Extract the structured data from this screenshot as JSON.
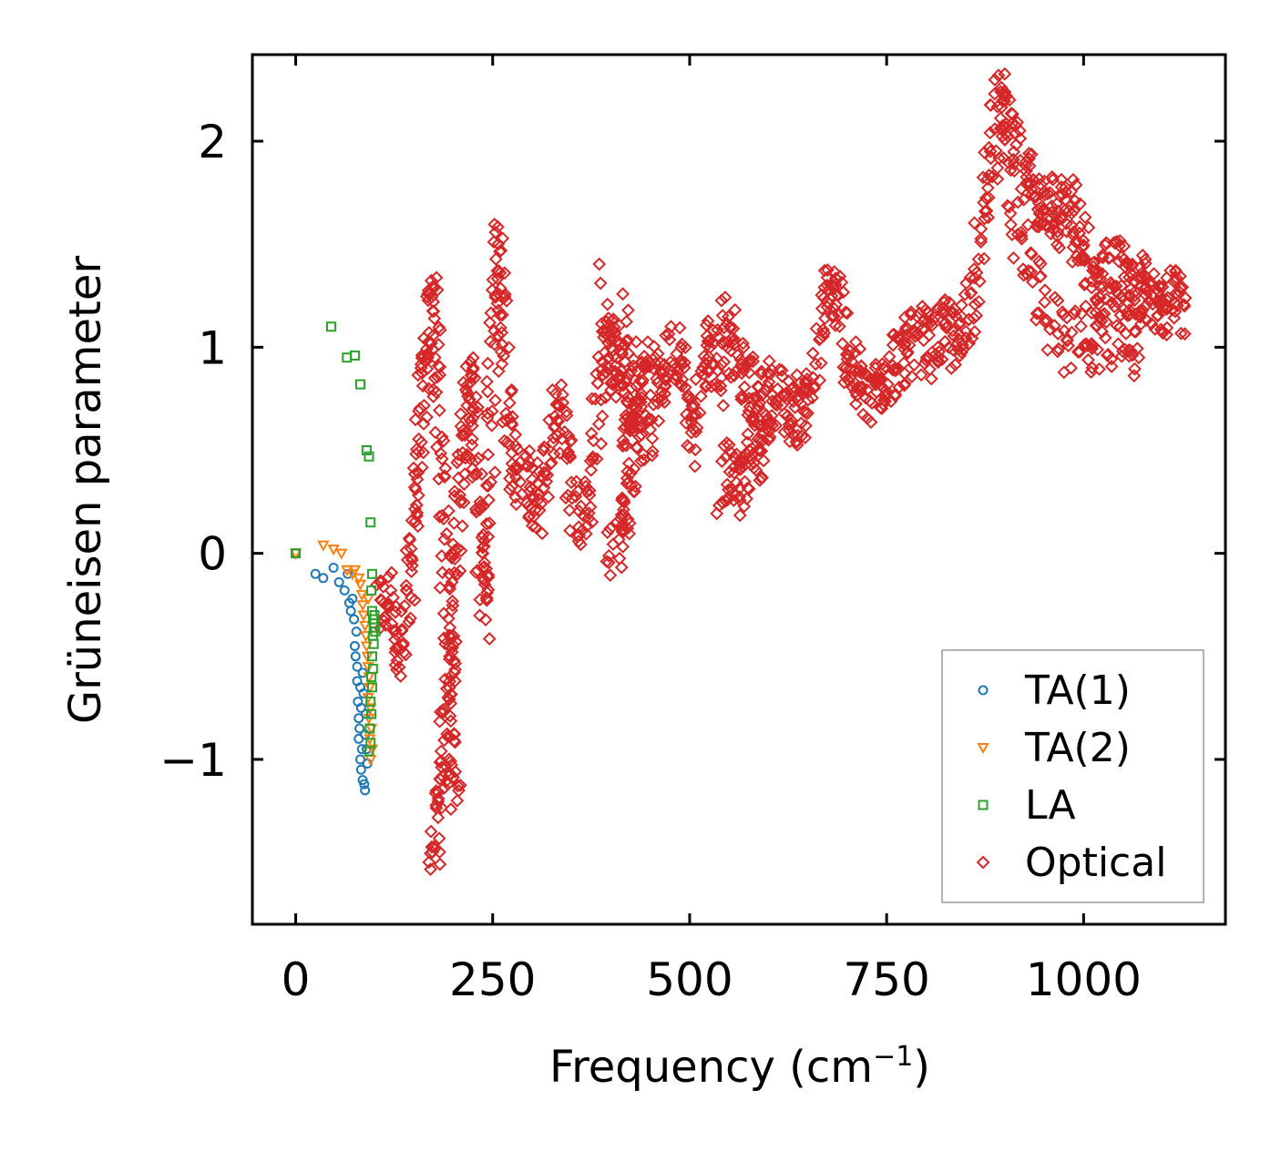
{
  "chart_data": {
    "type": "scatter",
    "title": "",
    "xlabel": "Frequency (cm",
    "xlabel_sup": "−1",
    "xlabel_end": ")",
    "ylabel": "Grüneisen parameter",
    "xlim": [
      -55,
      1180
    ],
    "ylim": [
      -1.8,
      2.42
    ],
    "xticks": [
      0,
      250,
      500,
      750,
      1000
    ],
    "xtick_labels": [
      "0",
      "250",
      "500",
      "750",
      "1000"
    ],
    "yticks": [
      -1,
      0,
      1,
      2
    ],
    "ytick_labels": [
      "−1",
      "0",
      "1",
      "2"
    ],
    "grid": false,
    "legend_position": "lower-right",
    "series": [
      {
        "name": "TA(1)",
        "marker": "circle",
        "color": "#1f77b4",
        "points": [
          [
            0,
            0
          ],
          [
            25,
            -0.1
          ],
          [
            35,
            -0.12
          ],
          [
            48,
            -0.07
          ],
          [
            55,
            -0.14
          ],
          [
            62,
            -0.18
          ],
          [
            66,
            -0.1
          ],
          [
            68,
            -0.24
          ],
          [
            70,
            -0.28
          ],
          [
            72,
            -0.22
          ],
          [
            74,
            -0.32
          ],
          [
            75,
            -0.45
          ],
          [
            76,
            -0.5
          ],
          [
            77,
            -0.38
          ],
          [
            78,
            -0.55
          ],
          [
            78,
            -0.62
          ],
          [
            79,
            -0.72
          ],
          [
            80,
            -0.8
          ],
          [
            80,
            -0.9
          ],
          [
            81,
            -0.85
          ],
          [
            82,
            -0.65
          ],
          [
            82,
            -1.0
          ],
          [
            83,
            -1.05
          ],
          [
            83,
            -0.75
          ],
          [
            84,
            -0.95
          ],
          [
            85,
            -1.1
          ],
          [
            85,
            -0.58
          ],
          [
            86,
            -0.68
          ],
          [
            87,
            -1.12
          ],
          [
            88,
            -1.15
          ],
          [
            88,
            -0.88
          ],
          [
            89,
            -0.78
          ],
          [
            90,
            -0.95
          ],
          [
            91,
            -1.02
          ]
        ]
      },
      {
        "name": "TA(2)",
        "marker": "triangle-down",
        "color": "#ff7f0e",
        "points": [
          [
            0,
            0
          ],
          [
            35,
            0.04
          ],
          [
            48,
            0.02
          ],
          [
            58,
            0.0
          ],
          [
            65,
            -0.08
          ],
          [
            72,
            -0.1
          ],
          [
            75,
            -0.08
          ],
          [
            80,
            -0.12
          ],
          [
            82,
            -0.15
          ],
          [
            84,
            -0.2
          ],
          [
            85,
            -0.25
          ],
          [
            86,
            -0.3
          ],
          [
            88,
            -0.35
          ],
          [
            89,
            -0.4
          ],
          [
            90,
            -0.45
          ],
          [
            91,
            -0.5
          ],
          [
            92,
            -0.55
          ],
          [
            93,
            -0.6
          ],
          [
            92,
            -0.7
          ],
          [
            94,
            -0.65
          ],
          [
            93,
            -0.8
          ],
          [
            95,
            -0.75
          ],
          [
            94,
            -0.9
          ],
          [
            95,
            -1.0
          ],
          [
            96,
            -0.85
          ],
          [
            97,
            -0.95
          ],
          [
            92,
            -0.22
          ]
        ]
      },
      {
        "name": "LA",
        "marker": "square",
        "color": "#2ca02c",
        "points": [
          [
            0,
            0
          ],
          [
            45,
            1.1
          ],
          [
            65,
            0.95
          ],
          [
            75,
            0.96
          ],
          [
            82,
            0.82
          ],
          [
            90,
            0.5
          ],
          [
            93,
            0.47
          ],
          [
            95,
            0.15
          ],
          [
            97,
            -0.1
          ],
          [
            96,
            -0.18
          ],
          [
            97,
            -0.28
          ],
          [
            98,
            -0.32
          ],
          [
            99,
            -0.36
          ],
          [
            98,
            -0.4
          ],
          [
            99,
            -0.44
          ],
          [
            97,
            -0.5
          ],
          [
            98,
            -0.56
          ],
          [
            96,
            -0.6
          ],
          [
            97,
            -0.65
          ],
          [
            95,
            -0.72
          ],
          [
            96,
            -0.78
          ],
          [
            94,
            -0.85
          ],
          [
            95,
            -0.92
          ],
          [
            93,
            -0.96
          ],
          [
            100,
            -0.3
          ],
          [
            101,
            -0.38
          ],
          [
            100,
            -0.34
          ]
        ]
      },
      {
        "name": "Optical",
        "marker": "diamond",
        "color": "#d62728",
        "segments": [
          [
            [
              105,
              -0.3
            ],
            [
              115,
              -0.2
            ],
            [
              125,
              -0.35
            ],
            [
              135,
              -0.5
            ],
            [
              145,
              -0.2
            ],
            [
              150,
              0.1
            ],
            [
              155,
              0.4
            ],
            [
              160,
              0.7
            ],
            [
              165,
              0.95
            ],
            [
              170,
              1.1
            ],
            [
              175,
              1.22
            ],
            [
              180,
              0.9
            ],
            [
              185,
              0.4
            ],
            [
              190,
              -0.1
            ],
            [
              195,
              -0.5
            ],
            [
              200,
              -0.9
            ],
            [
              205,
              -1.2
            ]
          ],
          [
            [
              175,
              -1.45
            ],
            [
              180,
              -1.3
            ],
            [
              185,
              -1.1
            ],
            [
              190,
              -0.8
            ],
            [
              195,
              -0.5
            ],
            [
              200,
              -0.2
            ],
            [
              205,
              0.1
            ],
            [
              210,
              0.4
            ],
            [
              215,
              0.7
            ],
            [
              220,
              0.85
            ],
            [
              225,
              0.6
            ],
            [
              230,
              0.3
            ],
            [
              235,
              0.0
            ],
            [
              240,
              -0.3
            ],
            [
              245,
              0.2
            ],
            [
              250,
              0.8
            ],
            [
              255,
              1.3
            ],
            [
              258,
              1.55
            ],
            [
              262,
              1.2
            ],
            [
              268,
              0.7
            ],
            [
              275,
              0.45
            ],
            [
              285,
              0.4
            ],
            [
              295,
              0.3
            ],
            [
              305,
              0.2
            ],
            [
              315,
              0.35
            ],
            [
              325,
              0.55
            ],
            [
              335,
              0.75
            ],
            [
              345,
              0.5
            ],
            [
              355,
              0.2
            ],
            [
              365,
              0.15
            ],
            [
              375,
              0.4
            ],
            [
              385,
              0.8
            ],
            [
              395,
              1.05
            ],
            [
              405,
              0.9
            ],
            [
              415,
              1.15
            ],
            [
              425,
              0.7
            ],
            [
              435,
              0.85
            ],
            [
              445,
              0.95
            ],
            [
              455,
              0.75
            ],
            [
              465,
              0.85
            ],
            [
              475,
              0.95
            ],
            [
              485,
              1.05
            ],
            [
              495,
              0.7
            ],
            [
              505,
              0.55
            ],
            [
              515,
              0.9
            ],
            [
              525,
              1.0
            ],
            [
              535,
              0.85
            ],
            [
              545,
              1.15
            ],
            [
              555,
              1.0
            ],
            [
              565,
              0.95
            ],
            [
              575,
              0.8
            ],
            [
              585,
              0.75
            ],
            [
              595,
              0.65
            ],
            [
              605,
              0.8
            ],
            [
              615,
              0.75
            ],
            [
              625,
              0.7
            ],
            [
              635,
              0.68
            ],
            [
              645,
              0.72
            ],
            [
              655,
              0.8
            ],
            [
              665,
              1.0
            ],
            [
              675,
              1.3
            ],
            [
              685,
              1.25
            ],
            [
              695,
              1.05
            ],
            [
              705,
              0.9
            ],
            [
              715,
              0.85
            ],
            [
              725,
              0.75
            ],
            [
              735,
              0.78
            ],
            [
              745,
              0.82
            ],
            [
              755,
              0.9
            ],
            [
              765,
              0.95
            ],
            [
              775,
              1.0
            ],
            [
              785,
              1.02
            ],
            [
              795,
              1.05
            ],
            [
              805,
              1.0
            ],
            [
              815,
              1.05
            ],
            [
              825,
              1.08
            ],
            [
              835,
              1.0
            ],
            [
              845,
              1.1
            ],
            [
              855,
              1.2
            ],
            [
              865,
              1.4
            ],
            [
              875,
              1.7
            ],
            [
              885,
              2.0
            ],
            [
              893,
              2.2
            ],
            [
              900,
              2.1
            ],
            [
              910,
              2.0
            ],
            [
              920,
              1.9
            ],
            [
              930,
              1.8
            ],
            [
              940,
              1.7
            ],
            [
              950,
              1.75
            ],
            [
              960,
              1.65
            ],
            [
              970,
              1.6
            ],
            [
              980,
              1.7
            ],
            [
              990,
              1.55
            ],
            [
              1000,
              1.45
            ],
            [
              1010,
              1.3
            ],
            [
              1020,
              1.25
            ],
            [
              1030,
              1.35
            ],
            [
              1040,
              1.4
            ],
            [
              1050,
              1.3
            ],
            [
              1060,
              1.25
            ],
            [
              1070,
              1.3
            ],
            [
              1080,
              1.28
            ],
            [
              1090,
              1.25
            ],
            [
              1100,
              1.22
            ],
            [
              1110,
              1.22
            ],
            [
              1120,
              1.21
            ],
            [
              1128,
              1.2
            ]
          ],
          [
            [
              390,
              1.28
            ],
            [
              400,
              1.0
            ],
            [
              410,
              0.85
            ],
            [
              420,
              0.6
            ],
            [
              430,
              0.5
            ],
            [
              440,
              0.65
            ],
            [
              450,
              0.6
            ]
          ],
          [
            [
              540,
              0.3
            ],
            [
              550,
              0.4
            ],
            [
              560,
              0.35
            ],
            [
              570,
              0.3
            ],
            [
              580,
              0.55
            ],
            [
              590,
              0.5
            ],
            [
              600,
              0.55
            ]
          ],
          [
            [
              900,
              1.8
            ],
            [
              920,
              1.5
            ],
            [
              940,
              1.3
            ],
            [
              960,
              1.1
            ],
            [
              980,
              1.0
            ],
            [
              1000,
              1.1
            ],
            [
              1020,
              1.0
            ],
            [
              1040,
              1.05
            ],
            [
              1060,
              1.1
            ],
            [
              1070,
              0.95
            ]
          ],
          [
            [
              400,
              0.02
            ],
            [
              410,
              0.1
            ],
            [
              420,
              0.18
            ],
            [
              430,
              0.3
            ]
          ]
        ]
      }
    ]
  }
}
